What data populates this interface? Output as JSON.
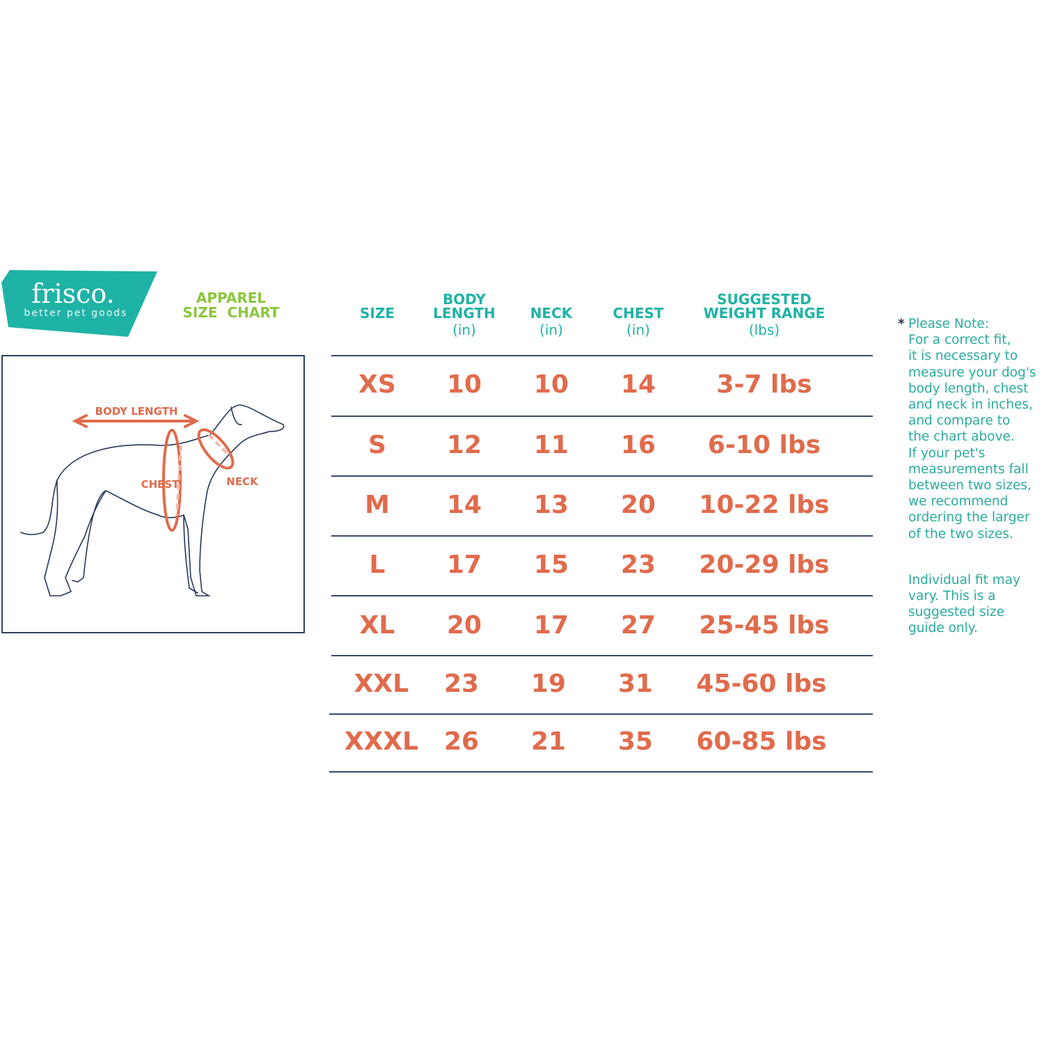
{
  "brand": {
    "name": "frisco.",
    "tagline": "better pet goods",
    "color": "#1fb3a5"
  },
  "title": {
    "line1": "APPAREL",
    "line2": "SIZE  CHART",
    "color": "#8cc63f"
  },
  "diagram": {
    "labels": {
      "body_length": "BODY LENGTH",
      "chest": "CHEST",
      "neck": "NECK"
    },
    "accent": "#e06b4c"
  },
  "table": {
    "headers": [
      {
        "title": "SIZE",
        "unit": ""
      },
      {
        "title": "BODY\nLENGTH",
        "unit": "(in)"
      },
      {
        "title": "NECK",
        "unit": "(in)"
      },
      {
        "title": "CHEST",
        "unit": "(in)"
      },
      {
        "title": "SUGGESTED\nWEIGHT RANGE",
        "unit": "(lbs)"
      }
    ],
    "rows": [
      [
        "XS",
        "10",
        "10",
        "14",
        "3-7 lbs"
      ],
      [
        "S",
        "12",
        "11",
        "16",
        "6-10 lbs"
      ],
      [
        "M",
        "14",
        "13",
        "20",
        "10-22 lbs"
      ],
      [
        "L",
        "17",
        "15",
        "23",
        "20-29 lbs"
      ],
      [
        "XL",
        "20",
        "17",
        "27",
        "25-45 lbs"
      ],
      [
        "XXL",
        "23",
        "19",
        "31",
        "45-60 lbs"
      ],
      [
        "XXXL",
        "26",
        "21",
        "35",
        "60-85 lbs"
      ]
    ],
    "header_color": "#1fb3a5",
    "value_color": "#e06b4c"
  },
  "note": {
    "asterisk": "*",
    "paragraph1": "Please Note:\nFor a correct fit,\nit is necessary to\nmeasure your dog's\nbody length, chest\nand neck in inches,\nand compare to\nthe chart above.\nIf your pet's\nmeasurements fall\nbetween two sizes,\nwe recommend\nordering the larger\nof the two sizes.",
    "paragraph2": "Individual fit may\nvary. This is a\nsuggested size\nguide only."
  }
}
